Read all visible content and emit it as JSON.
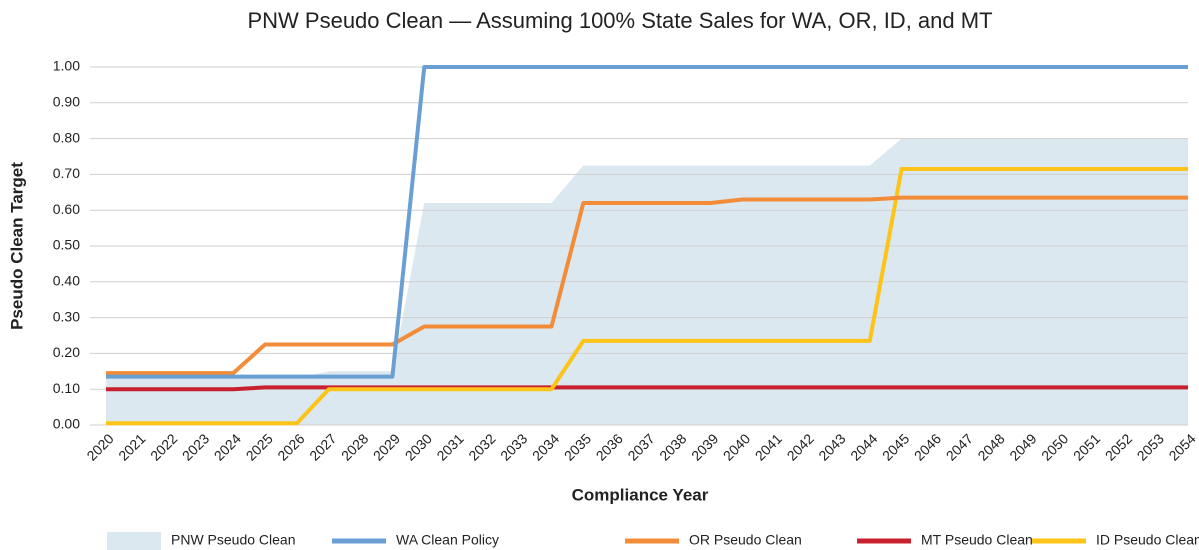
{
  "chart_data": {
    "type": "line",
    "title": "PNW Pseudo Clean — Assuming 100% State Sales for WA, OR, ID, and MT",
    "x_label": "Compliance Year",
    "y_label": "Pseudo Clean Target",
    "categories": [
      "2020",
      "2021",
      "2022",
      "2023",
      "2024",
      "2025",
      "2026",
      "2027",
      "2028",
      "2029",
      "2030",
      "2031",
      "2032",
      "2033",
      "2034",
      "2035",
      "2036",
      "2037",
      "2038",
      "2039",
      "2040",
      "2041",
      "2042",
      "2043",
      "2044",
      "2045",
      "2046",
      "2047",
      "2048",
      "2049",
      "2050",
      "2051",
      "2052",
      "2053",
      "2054"
    ],
    "series": [
      {
        "name": "PNW Pseudo Clean",
        "type": "area",
        "color": "#dce8f0",
        "values": [
          0.13,
          0.13,
          0.13,
          0.13,
          0.13,
          0.13,
          0.13,
          0.15,
          0.15,
          0.15,
          0.62,
          0.62,
          0.62,
          0.62,
          0.62,
          0.725,
          0.725,
          0.725,
          0.725,
          0.725,
          0.725,
          0.725,
          0.725,
          0.725,
          0.725,
          0.8,
          0.8,
          0.8,
          0.8,
          0.8,
          0.8,
          0.8,
          0.8,
          0.8,
          0.8
        ]
      },
      {
        "name": "WA Clean Policy",
        "type": "line",
        "color": "#6a9fd4",
        "values": [
          0.135,
          0.135,
          0.135,
          0.135,
          0.135,
          0.135,
          0.135,
          0.135,
          0.135,
          0.135,
          1,
          1,
          1,
          1,
          1,
          1,
          1,
          1,
          1,
          1,
          1,
          1,
          1,
          1,
          1,
          1,
          1,
          1,
          1,
          1,
          1,
          1,
          1,
          1,
          1
        ]
      },
      {
        "name": "OR Pseudo Clean",
        "type": "line",
        "color": "#f28c38",
        "values": [
          0.145,
          0.145,
          0.145,
          0.145,
          0.145,
          0.225,
          0.225,
          0.225,
          0.225,
          0.225,
          0.275,
          0.275,
          0.275,
          0.275,
          0.275,
          0.62,
          0.62,
          0.62,
          0.62,
          0.62,
          0.63,
          0.63,
          0.63,
          0.63,
          0.63,
          0.635,
          0.635,
          0.635,
          0.635,
          0.635,
          0.635,
          0.635,
          0.635,
          0.635,
          0.635
        ]
      },
      {
        "name": "MT Pseudo Clean",
        "type": "line",
        "color": "#c8202f",
        "values": [
          0.1,
          0.1,
          0.1,
          0.1,
          0.1,
          0.105,
          0.105,
          0.105,
          0.105,
          0.105,
          0.105,
          0.105,
          0.105,
          0.105,
          0.105,
          0.105,
          0.105,
          0.105,
          0.105,
          0.105,
          0.105,
          0.105,
          0.105,
          0.105,
          0.105,
          0.105,
          0.105,
          0.105,
          0.105,
          0.105,
          0.105,
          0.105,
          0.105,
          0.105,
          0.105
        ]
      },
      {
        "name": "ID Pseudo Clean",
        "type": "line",
        "color": "#fcc419",
        "values": [
          0.005,
          0.005,
          0.005,
          0.005,
          0.005,
          0.005,
          0.005,
          0.1,
          0.1,
          0.1,
          0.1,
          0.1,
          0.1,
          0.1,
          0.1,
          0.235,
          0.235,
          0.235,
          0.235,
          0.235,
          0.235,
          0.235,
          0.235,
          0.235,
          0.235,
          0.715,
          0.715,
          0.715,
          0.715,
          0.715,
          0.715,
          0.715,
          0.715,
          0.715,
          0.715
        ]
      }
    ],
    "ylim": [
      0,
      1
    ],
    "yticks": [
      {
        "value": 0,
        "label": "0.00"
      },
      {
        "value": 0.1,
        "label": "0.10"
      },
      {
        "value": 0.2,
        "label": "0.20"
      },
      {
        "value": 0.3,
        "label": "0.30"
      },
      {
        "value": 0.4,
        "label": "0.40"
      },
      {
        "value": 0.5,
        "label": "0.50"
      },
      {
        "value": 0.6,
        "label": "0.60"
      },
      {
        "value": 0.7,
        "label": "0.70"
      },
      {
        "value": 0.8,
        "label": "0.80"
      },
      {
        "value": 0.9,
        "label": "0.90"
      },
      {
        "value": 1,
        "label": "1.00"
      }
    ],
    "grid": true,
    "legend": "bottom"
  }
}
